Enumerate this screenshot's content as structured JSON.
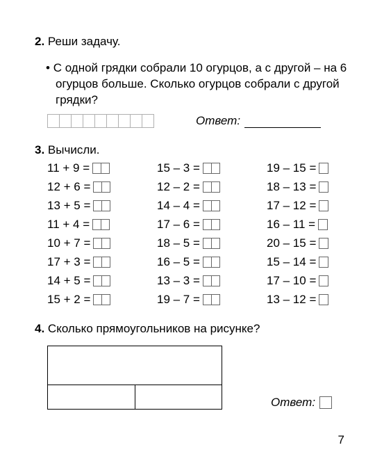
{
  "task2": {
    "heading_num": "2.",
    "heading_text": "Реши задачу.",
    "bullet": "•",
    "problem": "С одной грядки собрали 10 огурцов, а с другой – на 6 огурцов больше. Сколько огурцов собрали с другой грядки?",
    "cell_count": 9,
    "answer_label": "Ответ"
  },
  "task3": {
    "heading_num": "3.",
    "heading_text": "Вычисли.",
    "col1": [
      {
        "expr": "11 + 9 =",
        "boxes": 2
      },
      {
        "expr": "12 + 6 =",
        "boxes": 2
      },
      {
        "expr": "13 + 5 =",
        "boxes": 2
      },
      {
        "expr": "11 + 4 =",
        "boxes": 2
      },
      {
        "expr": "10 + 7 =",
        "boxes": 2
      },
      {
        "expr": "17 + 3 =",
        "boxes": 2
      },
      {
        "expr": "14 + 5 =",
        "boxes": 2
      },
      {
        "expr": "15 + 2 =",
        "boxes": 2
      }
    ],
    "col2": [
      {
        "expr": "15 – 3 =",
        "boxes": 2
      },
      {
        "expr": "12 – 2 =",
        "boxes": 2
      },
      {
        "expr": "14 – 4 =",
        "boxes": 2
      },
      {
        "expr": "17 – 6 =",
        "boxes": 2
      },
      {
        "expr": "18 – 5 =",
        "boxes": 2
      },
      {
        "expr": "16 – 5 =",
        "boxes": 2
      },
      {
        "expr": "13 – 3 =",
        "boxes": 2
      },
      {
        "expr": "19 – 7 =",
        "boxes": 2
      }
    ],
    "col3": [
      {
        "expr": "19 – 15 =",
        "boxes": 1
      },
      {
        "expr": "18 – 13 =",
        "boxes": 1
      },
      {
        "expr": "17 – 12 =",
        "boxes": 1
      },
      {
        "expr": "16 – 11 =",
        "boxes": 1
      },
      {
        "expr": "20 – 15 =",
        "boxes": 1
      },
      {
        "expr": "15 – 14 =",
        "boxes": 1
      },
      {
        "expr": "17 – 10 =",
        "boxes": 1
      },
      {
        "expr": "13 – 12 =",
        "boxes": 1
      }
    ]
  },
  "task4": {
    "heading_num": "4.",
    "heading_text": "Сколько прямоугольников на рисунке?",
    "answer_label": "Ответ"
  },
  "page_number": "7",
  "colors": {
    "text": "#000000",
    "background": "#ffffff",
    "cell_border": "#b0b0b0",
    "box_border": "#666666",
    "figure_border": "#000000"
  },
  "fontsize": 17
}
